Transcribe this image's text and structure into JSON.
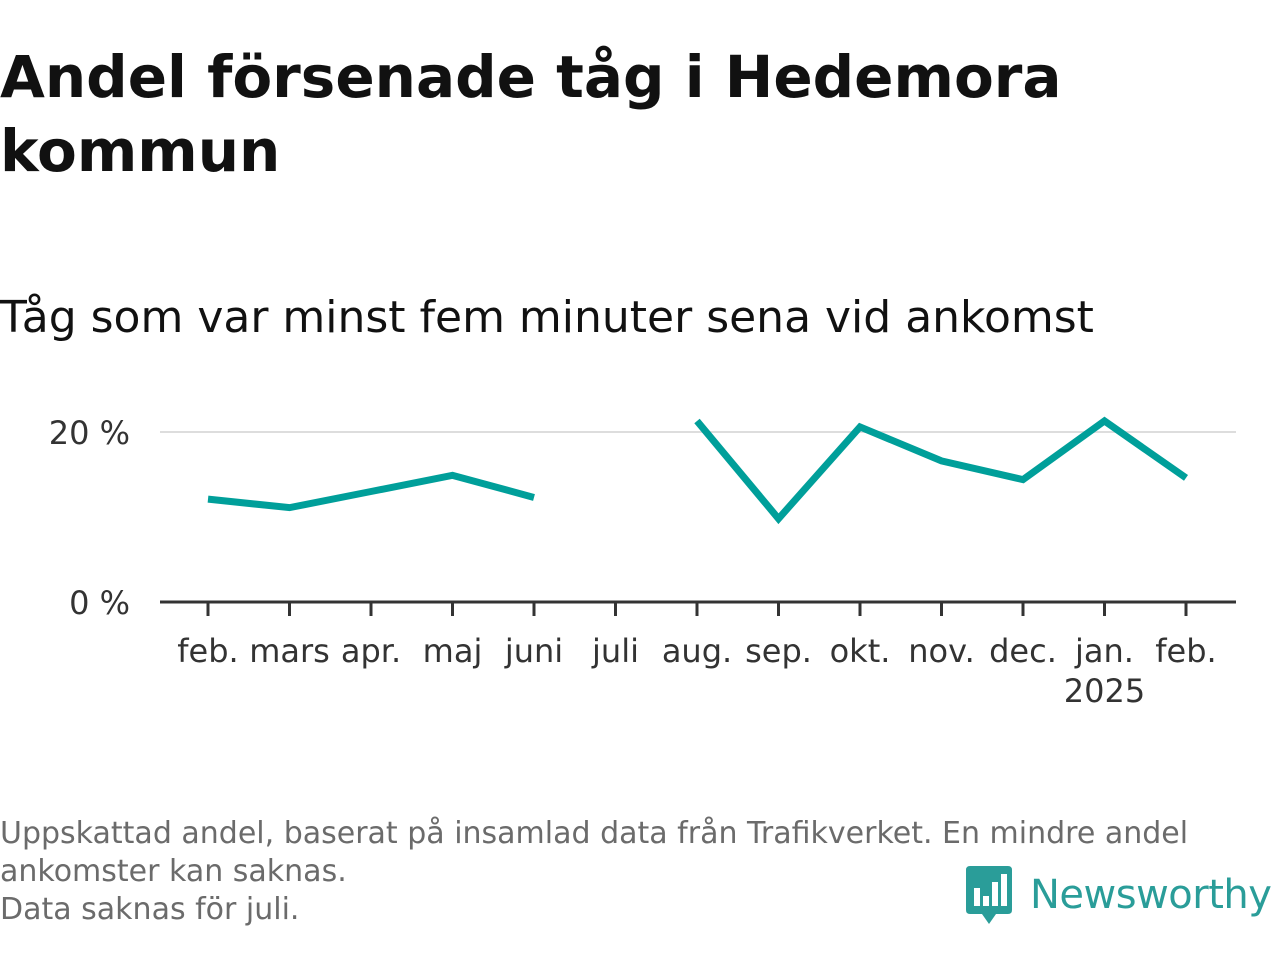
{
  "header": {
    "title": "Andel försenade tåg i Hedemora kommun",
    "subtitle": "Tåg som var minst fem minuter sena vid ankomst"
  },
  "footer": {
    "note_line1": "Uppskattad andel, baserat på insamlad data från Trafikverket. En mindre andel",
    "note_line2": "ankomster kan saknas.",
    "note_line3": "Data saknas för juli.",
    "brand_name": "Newsworthy",
    "brand_icon": "bar-chart-speech-bubble-icon"
  },
  "colors": {
    "line": "#009f9a",
    "brand": "#2a9d99",
    "grid": "#dddddd",
    "axis": "#333333"
  },
  "chart_data": {
    "type": "line",
    "title": "Andel försenade tåg i Hedemora kommun",
    "subtitle": "Tåg som var minst fem minuter sena vid ankomst",
    "categories": [
      "feb.",
      "mars",
      "apr.",
      "maj",
      "juni",
      "juli",
      "aug.",
      "sep.",
      "okt.",
      "nov.",
      "dec.",
      "jan.",
      "feb."
    ],
    "year_labels": [
      "",
      "",
      "",
      "",
      "",
      "",
      "",
      "",
      "",
      "",
      "",
      "2025",
      ""
    ],
    "series": [
      {
        "values": [
          12.1,
          11.1,
          13.0,
          14.9,
          12.3,
          null,
          21.3,
          9.8,
          20.6,
          16.6,
          14.4,
          21.3,
          14.6
        ]
      }
    ],
    "ylim": [
      0,
      20
    ],
    "yticks": [
      0,
      20
    ],
    "ytick_labels": [
      "0 %",
      "20 %"
    ],
    "xlabel": "",
    "ylabel": "",
    "grid": true
  }
}
